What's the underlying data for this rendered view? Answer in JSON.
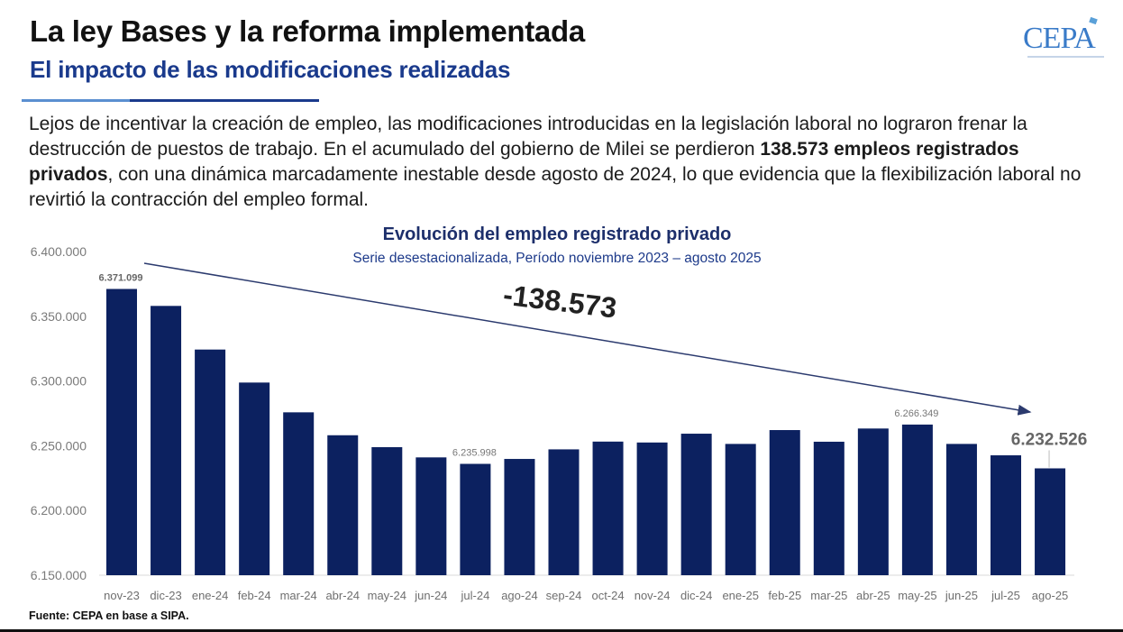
{
  "header": {
    "title": "La ley Bases y la reforma implementada",
    "subtitle": "El impacto de las modificaciones realizadas"
  },
  "logo": {
    "text": "CEPA"
  },
  "paragraph": {
    "part1": "Lejos de incentivar la creación de empleo, las modificaciones introducidas en la legislación laboral no lograron frenar la destrucción de puestos de trabajo. En el acumulado del gobierno de Milei se perdieron ",
    "bold": "138.573 empleos registrados privados",
    "part2": ", con una dinámica marcadamente inestable desde agosto de 2024, lo que evidencia que la flexibilización laboral no revirtió la contracción del empleo formal."
  },
  "source": "Fuente: CEPA en base a SIPA.",
  "colors": {
    "bar": "#0c2160",
    "title_navy": "#1a3a8c",
    "arrow": "#2b3a6e"
  },
  "chart_data": {
    "type": "bar",
    "title": "Evolución del empleo registrado privado",
    "subtitle": "Serie desestacionalizada, Período noviembre 2023 – agosto 2025",
    "xlabel": "",
    "ylabel": "",
    "ylim": [
      6150000,
      6400000
    ],
    "yticks": [
      6150000,
      6200000,
      6250000,
      6300000,
      6350000,
      6400000
    ],
    "ytick_labels": [
      "6.150.000",
      "6.200.000",
      "6.250.000",
      "6.300.000",
      "6.350.000",
      "6.400.000"
    ],
    "grid": false,
    "legend": "none",
    "categories": [
      "nov-23",
      "dic-23",
      "ene-24",
      "feb-24",
      "mar-24",
      "abr-24",
      "may-24",
      "jun-24",
      "jul-24",
      "ago-24",
      "sep-24",
      "oct-24",
      "nov-24",
      "dic-24",
      "ene-25",
      "feb-25",
      "mar-25",
      "abr-25",
      "may-25",
      "jun-25",
      "jul-25",
      "ago-25"
    ],
    "values": [
      6371099,
      6358000,
      6324300,
      6298800,
      6275800,
      6258100,
      6248900,
      6241000,
      6235998,
      6239800,
      6247200,
      6253200,
      6252500,
      6259300,
      6251400,
      6262100,
      6253100,
      6263300,
      6266349,
      6251400,
      6242600,
      6232526
    ],
    "data_labels": [
      {
        "index": 0,
        "text": "6.371.099",
        "style": "bold"
      },
      {
        "index": 8,
        "text": "6.235.998",
        "style": "normal"
      },
      {
        "index": 18,
        "text": "6.266.349",
        "style": "normal"
      },
      {
        "index": 21,
        "text": "6.232.526",
        "style": "big"
      }
    ],
    "annotation": {
      "text": "-138.573",
      "type": "trend-arrow",
      "from_index": 0,
      "to_index": 21
    }
  }
}
